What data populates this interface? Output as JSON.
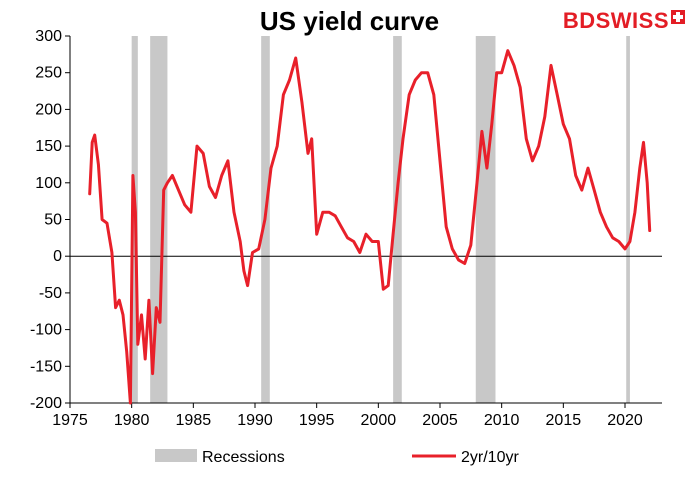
{
  "brand": {
    "name_part1": "BD",
    "name_part2": "SWISS",
    "accent": "#e31d25"
  },
  "chart_data": {
    "type": "line",
    "title": "US yield curve",
    "xlabel": "",
    "ylabel": "",
    "xlim": [
      1975,
      2023
    ],
    "ylim": [
      -200,
      300
    ],
    "xticks": [
      1975,
      1980,
      1985,
      1990,
      1995,
      2000,
      2005,
      2010,
      2015,
      2020
    ],
    "yticks": [
      -200,
      -150,
      -100,
      -50,
      0,
      50,
      100,
      150,
      200,
      250,
      300
    ],
    "grid": false,
    "legend": {
      "placement": "bottom",
      "entries": [
        "Recessions",
        "2yr/10yr"
      ]
    },
    "recessions": {
      "name": "Recessions",
      "color": "#c8c8c8",
      "periods": [
        [
          1980.0,
          1980.5
        ],
        [
          1981.5,
          1982.9
        ],
        [
          1990.5,
          1991.2
        ],
        [
          2001.2,
          2001.9
        ],
        [
          2007.9,
          2009.5
        ],
        [
          2020.1,
          2020.4
        ]
      ]
    },
    "series": [
      {
        "name": "2yr/10yr",
        "color": "#e8202a",
        "x": [
          1976.6,
          1976.8,
          1977.0,
          1977.3,
          1977.6,
          1978.0,
          1978.4,
          1978.7,
          1979.0,
          1979.3,
          1979.6,
          1979.9,
          1980.1,
          1980.3,
          1980.5,
          1980.8,
          1981.1,
          1981.4,
          1981.7,
          1982.0,
          1982.3,
          1982.6,
          1982.9,
          1983.3,
          1983.8,
          1984.3,
          1984.8,
          1985.3,
          1985.8,
          1986.3,
          1986.8,
          1987.3,
          1987.8,
          1988.3,
          1988.8,
          1989.1,
          1989.4,
          1989.8,
          1990.3,
          1990.8,
          1991.3,
          1991.8,
          1992.3,
          1992.8,
          1993.3,
          1993.8,
          1994.3,
          1994.6,
          1995.0,
          1995.5,
          1996.0,
          1996.5,
          1997.0,
          1997.5,
          1998.0,
          1998.5,
          1999.0,
          1999.5,
          2000.0,
          2000.4,
          2000.8,
          2001.2,
          2001.6,
          2002.0,
          2002.5,
          2003.0,
          2003.5,
          2004.0,
          2004.5,
          2005.0,
          2005.5,
          2006.0,
          2006.5,
          2007.0,
          2007.5,
          2008.0,
          2008.4,
          2008.8,
          2009.2,
          2009.6,
          2010.0,
          2010.5,
          2011.0,
          2011.5,
          2012.0,
          2012.5,
          2013.0,
          2013.5,
          2014.0,
          2014.5,
          2015.0,
          2015.5,
          2016.0,
          2016.5,
          2017.0,
          2017.5,
          2018.0,
          2018.5,
          2019.0,
          2019.5,
          2020.0,
          2020.4,
          2020.8,
          2021.2,
          2021.5,
          2021.8,
          2022.0
        ],
        "values": [
          85,
          155,
          165,
          125,
          50,
          45,
          5,
          -70,
          -60,
          -80,
          -130,
          -200,
          110,
          60,
          -120,
          -80,
          -140,
          -60,
          -160,
          -70,
          -90,
          90,
          100,
          110,
          90,
          70,
          60,
          150,
          140,
          95,
          80,
          110,
          130,
          60,
          20,
          -20,
          -40,
          5,
          10,
          50,
          120,
          150,
          220,
          240,
          270,
          210,
          140,
          160,
          30,
          60,
          60,
          55,
          40,
          25,
          20,
          5,
          30,
          20,
          20,
          -45,
          -40,
          30,
          100,
          160,
          220,
          240,
          250,
          250,
          220,
          130,
          40,
          10,
          -5,
          -10,
          15,
          100,
          170,
          120,
          180,
          250,
          250,
          280,
          260,
          230,
          160,
          130,
          150,
          190,
          260,
          220,
          180,
          160,
          110,
          90,
          120,
          90,
          60,
          40,
          25,
          20,
          10,
          20,
          60,
          120,
          155,
          100,
          35
        ]
      }
    ]
  }
}
